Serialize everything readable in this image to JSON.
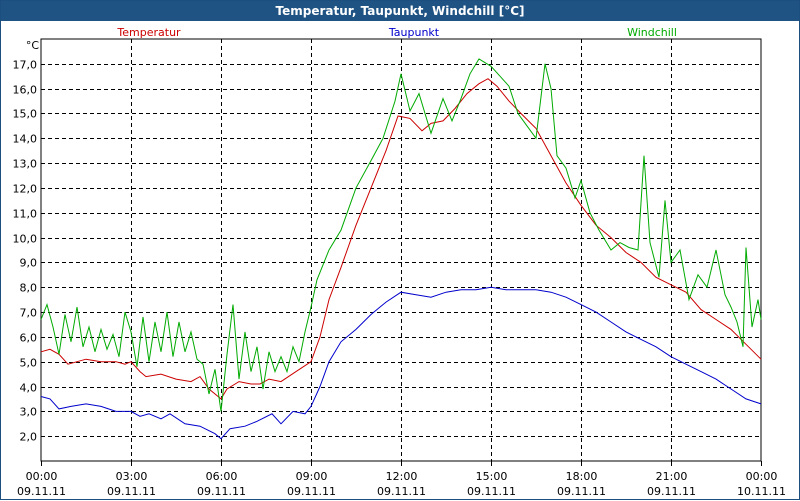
{
  "window": {
    "title": "Temperatur, Taupunkt, Windchill [°C]"
  },
  "chart_data": {
    "type": "line",
    "title": "Temperatur, Taupunkt, Windchill [°C]",
    "ylabel": "°C",
    "ylim": [
      1.0,
      18.0
    ],
    "xlim_hours": [
      0,
      24
    ],
    "grid": true,
    "yticks": [
      "2,0",
      "3,0",
      "4,0",
      "5,0",
      "6,0",
      "7,0",
      "8,0",
      "9,0",
      "10,0",
      "11,0",
      "12,0",
      "13,0",
      "14,0",
      "15,0",
      "16,0",
      "17,0"
    ],
    "xticks": [
      {
        "h": 0,
        "time": "00:00",
        "date": "09.11.11"
      },
      {
        "h": 3,
        "time": "03:00",
        "date": "09.11.11"
      },
      {
        "h": 6,
        "time": "06:00",
        "date": "09.11.11"
      },
      {
        "h": 9,
        "time": "09:00",
        "date": "09.11.11"
      },
      {
        "h": 12,
        "time": "12:00",
        "date": "09.11.11"
      },
      {
        "h": 15,
        "time": "15:00",
        "date": "09.11.11"
      },
      {
        "h": 18,
        "time": "18:00",
        "date": "09.11.11"
      },
      {
        "h": 21,
        "time": "21:00",
        "date": "09.11.11"
      },
      {
        "h": 24,
        "time": "00:00",
        "date": "10.11.11"
      }
    ],
    "series": [
      {
        "name": "Temperatur",
        "color": "#cc0000",
        "points": [
          [
            0,
            5.4
          ],
          [
            0.3,
            5.5
          ],
          [
            0.6,
            5.3
          ],
          [
            0.9,
            4.9
          ],
          [
            1.2,
            5.0
          ],
          [
            1.5,
            5.1
          ],
          [
            2.0,
            5.0
          ],
          [
            2.5,
            5.0
          ],
          [
            2.8,
            4.9
          ],
          [
            3.0,
            5.0
          ],
          [
            3.3,
            4.6
          ],
          [
            3.5,
            4.4
          ],
          [
            4.0,
            4.5
          ],
          [
            4.5,
            4.3
          ],
          [
            5.0,
            4.2
          ],
          [
            5.3,
            4.4
          ],
          [
            5.6,
            3.9
          ],
          [
            6.0,
            3.5
          ],
          [
            6.2,
            3.9
          ],
          [
            6.6,
            4.2
          ],
          [
            7.0,
            4.1
          ],
          [
            7.3,
            4.1
          ],
          [
            7.6,
            4.3
          ],
          [
            8.0,
            4.2
          ],
          [
            8.5,
            4.6
          ],
          [
            9.0,
            5.0
          ],
          [
            9.3,
            6.0
          ],
          [
            9.6,
            7.5
          ],
          [
            10.0,
            8.8
          ],
          [
            10.5,
            10.5
          ],
          [
            11.0,
            12.0
          ],
          [
            11.5,
            13.5
          ],
          [
            11.9,
            14.9
          ],
          [
            12.3,
            14.8
          ],
          [
            12.7,
            14.3
          ],
          [
            13.0,
            14.6
          ],
          [
            13.4,
            14.7
          ],
          [
            13.8,
            15.2
          ],
          [
            14.2,
            15.8
          ],
          [
            14.6,
            16.2
          ],
          [
            14.9,
            16.4
          ],
          [
            15.2,
            16.1
          ],
          [
            15.6,
            15.5
          ],
          [
            16.0,
            15.0
          ],
          [
            16.5,
            14.4
          ],
          [
            17.0,
            13.3
          ],
          [
            17.5,
            12.2
          ],
          [
            18.0,
            11.3
          ],
          [
            18.5,
            10.5
          ],
          [
            19.0,
            10.0
          ],
          [
            19.5,
            9.4
          ],
          [
            20.0,
            9.0
          ],
          [
            20.5,
            8.4
          ],
          [
            21.0,
            8.1
          ],
          [
            21.5,
            7.8
          ],
          [
            22.0,
            7.1
          ],
          [
            22.5,
            6.7
          ],
          [
            23.0,
            6.3
          ],
          [
            23.5,
            5.7
          ],
          [
            24.0,
            5.1
          ]
        ]
      },
      {
        "name": "Taupunkt",
        "color": "#0000cc",
        "points": [
          [
            0,
            3.6
          ],
          [
            0.3,
            3.5
          ],
          [
            0.6,
            3.1
          ],
          [
            1.0,
            3.2
          ],
          [
            1.5,
            3.3
          ],
          [
            2.0,
            3.2
          ],
          [
            2.5,
            3.0
          ],
          [
            3.0,
            3.0
          ],
          [
            3.3,
            2.8
          ],
          [
            3.6,
            2.9
          ],
          [
            4.0,
            2.7
          ],
          [
            4.3,
            2.9
          ],
          [
            4.8,
            2.5
          ],
          [
            5.3,
            2.4
          ],
          [
            5.8,
            2.1
          ],
          [
            6.0,
            1.9
          ],
          [
            6.3,
            2.3
          ],
          [
            6.8,
            2.4
          ],
          [
            7.2,
            2.6
          ],
          [
            7.7,
            2.9
          ],
          [
            8.0,
            2.5
          ],
          [
            8.4,
            3.0
          ],
          [
            8.8,
            2.9
          ],
          [
            9.0,
            3.2
          ],
          [
            9.3,
            4.0
          ],
          [
            9.6,
            5.0
          ],
          [
            10.0,
            5.8
          ],
          [
            10.5,
            6.3
          ],
          [
            11.0,
            6.9
          ],
          [
            11.5,
            7.4
          ],
          [
            12.0,
            7.8
          ],
          [
            12.5,
            7.7
          ],
          [
            13.0,
            7.6
          ],
          [
            13.5,
            7.8
          ],
          [
            14.0,
            7.9
          ],
          [
            14.5,
            7.9
          ],
          [
            15.0,
            8.0
          ],
          [
            15.5,
            7.9
          ],
          [
            16.0,
            7.9
          ],
          [
            16.5,
            7.9
          ],
          [
            17.0,
            7.8
          ],
          [
            17.5,
            7.6
          ],
          [
            18.0,
            7.3
          ],
          [
            18.5,
            7.0
          ],
          [
            19.0,
            6.6
          ],
          [
            19.5,
            6.2
          ],
          [
            20.0,
            5.9
          ],
          [
            20.5,
            5.6
          ],
          [
            21.0,
            5.2
          ],
          [
            21.5,
            4.9
          ],
          [
            22.0,
            4.6
          ],
          [
            22.5,
            4.3
          ],
          [
            23.0,
            3.9
          ],
          [
            23.5,
            3.5
          ],
          [
            24.0,
            3.3
          ]
        ]
      },
      {
        "name": "Windchill",
        "color": "#00aa00",
        "points": [
          [
            0,
            6.7
          ],
          [
            0.2,
            7.3
          ],
          [
            0.4,
            6.4
          ],
          [
            0.6,
            5.3
          ],
          [
            0.8,
            6.9
          ],
          [
            1.0,
            5.8
          ],
          [
            1.2,
            7.2
          ],
          [
            1.4,
            5.6
          ],
          [
            1.6,
            6.4
          ],
          [
            1.8,
            5.4
          ],
          [
            2.0,
            6.3
          ],
          [
            2.2,
            5.5
          ],
          [
            2.4,
            6.1
          ],
          [
            2.6,
            5.2
          ],
          [
            2.8,
            7.0
          ],
          [
            3.0,
            6.2
          ],
          [
            3.2,
            4.8
          ],
          [
            3.4,
            6.8
          ],
          [
            3.6,
            5.0
          ],
          [
            3.8,
            6.6
          ],
          [
            4.0,
            5.4
          ],
          [
            4.2,
            7.0
          ],
          [
            4.4,
            5.2
          ],
          [
            4.6,
            6.6
          ],
          [
            4.8,
            5.4
          ],
          [
            5.0,
            6.2
          ],
          [
            5.2,
            5.1
          ],
          [
            5.4,
            4.9
          ],
          [
            5.6,
            3.7
          ],
          [
            5.8,
            4.7
          ],
          [
            6.0,
            3.0
          ],
          [
            6.2,
            5.3
          ],
          [
            6.4,
            7.3
          ],
          [
            6.6,
            4.3
          ],
          [
            6.8,
            6.2
          ],
          [
            7.0,
            4.6
          ],
          [
            7.2,
            5.6
          ],
          [
            7.4,
            3.9
          ],
          [
            7.6,
            5.4
          ],
          [
            7.8,
            4.6
          ],
          [
            8.0,
            5.2
          ],
          [
            8.2,
            4.6
          ],
          [
            8.4,
            5.6
          ],
          [
            8.6,
            5.0
          ],
          [
            8.8,
            6.2
          ],
          [
            9.0,
            7.2
          ],
          [
            9.2,
            8.3
          ],
          [
            9.6,
            9.5
          ],
          [
            10.0,
            10.3
          ],
          [
            10.5,
            12.0
          ],
          [
            11.0,
            13.1
          ],
          [
            11.4,
            14.0
          ],
          [
            11.8,
            15.5
          ],
          [
            12.0,
            16.6
          ],
          [
            12.3,
            15.1
          ],
          [
            12.6,
            15.8
          ],
          [
            13.0,
            14.2
          ],
          [
            13.4,
            15.6
          ],
          [
            13.7,
            14.7
          ],
          [
            14.0,
            15.6
          ],
          [
            14.3,
            16.6
          ],
          [
            14.6,
            17.2
          ],
          [
            15.0,
            16.9
          ],
          [
            15.3,
            16.5
          ],
          [
            15.6,
            16.1
          ],
          [
            15.9,
            15.0
          ],
          [
            16.2,
            14.5
          ],
          [
            16.5,
            14.0
          ],
          [
            16.8,
            17.0
          ],
          [
            17.0,
            16.0
          ],
          [
            17.2,
            13.3
          ],
          [
            17.5,
            12.8
          ],
          [
            17.8,
            11.6
          ],
          [
            18.0,
            12.3
          ],
          [
            18.3,
            11.0
          ],
          [
            18.6,
            10.3
          ],
          [
            19.0,
            9.5
          ],
          [
            19.3,
            9.8
          ],
          [
            19.6,
            9.6
          ],
          [
            19.9,
            9.5
          ],
          [
            20.1,
            13.3
          ],
          [
            20.3,
            9.8
          ],
          [
            20.6,
            8.4
          ],
          [
            20.8,
            11.5
          ],
          [
            21.0,
            9.0
          ],
          [
            21.3,
            9.5
          ],
          [
            21.6,
            7.5
          ],
          [
            21.9,
            8.5
          ],
          [
            22.2,
            8.0
          ],
          [
            22.5,
            9.5
          ],
          [
            22.8,
            7.7
          ],
          [
            23.0,
            7.2
          ],
          [
            23.2,
            6.6
          ],
          [
            23.4,
            5.6
          ],
          [
            23.5,
            9.6
          ],
          [
            23.7,
            6.4
          ],
          [
            23.9,
            7.5
          ],
          [
            24.0,
            6.7
          ]
        ]
      }
    ]
  }
}
